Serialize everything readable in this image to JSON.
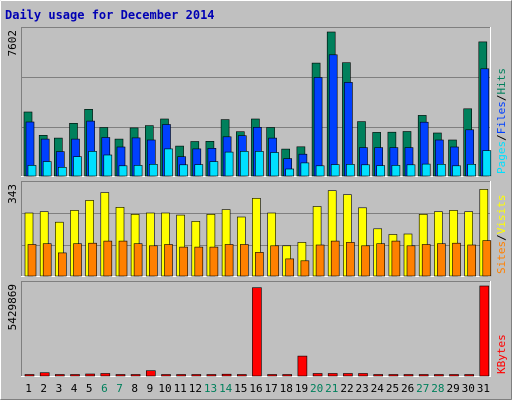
{
  "title": "Daily usage for December 2014",
  "colors": {
    "page_bg": "#c0c0c0",
    "title": "#0000b4",
    "hits": "#00805c",
    "files": "#0040ff",
    "pages": "#00e0ff",
    "visits": "#ffff00",
    "sites": "#ff8000",
    "kbytes": "#ff0000",
    "weekend": "#00805c",
    "grid": "#7f7f7f"
  },
  "chart_data": [
    {
      "type": "bar",
      "panel": "hits-files-pages",
      "ymax_label": "7602",
      "ylim": [
        0,
        7602
      ],
      "legend": [
        "Pages",
        "/",
        "Files",
        "/",
        "Hits"
      ],
      "categories": [
        "1",
        "2",
        "3",
        "4",
        "5",
        "6",
        "7",
        "8",
        "9",
        "10",
        "11",
        "12",
        "13",
        "14",
        "15",
        "16",
        "17",
        "18",
        "19",
        "20",
        "21",
        "22",
        "23",
        "24",
        "25",
        "26",
        "27",
        "28",
        "29",
        "30",
        "31"
      ],
      "series": [
        {
          "name": "Hits",
          "values": [
            3380,
            2150,
            2000,
            2780,
            3520,
            2560,
            1950,
            2540,
            2660,
            3010,
            1580,
            1820,
            1830,
            2980,
            2340,
            3010,
            2560,
            1420,
            1540,
            5960,
            7602,
            5980,
            2870,
            2300,
            2310,
            2350,
            3200,
            2270,
            1900,
            3550,
            7080
          ]
        },
        {
          "name": "Files",
          "values": [
            2850,
            1950,
            1290,
            1950,
            2900,
            2030,
            1530,
            2010,
            1900,
            2720,
            1020,
            1430,
            1460,
            2070,
            2130,
            2570,
            2000,
            920,
            1150,
            5200,
            6400,
            4940,
            1500,
            1500,
            1500,
            1500,
            2840,
            1900,
            1530,
            2440,
            5660
          ]
        },
        {
          "name": "Pages",
          "values": [
            560,
            760,
            460,
            1020,
            1300,
            1110,
            540,
            560,
            620,
            1430,
            590,
            600,
            760,
            1260,
            1300,
            1300,
            1240,
            370,
            690,
            540,
            600,
            610,
            590,
            550,
            560,
            590,
            630,
            620,
            540,
            620,
            1340
          ]
        }
      ]
    },
    {
      "type": "bar",
      "panel": "visits-sites",
      "ymax_label": "343",
      "ylim": [
        0,
        343
      ],
      "legend": [
        "Sites",
        "/",
        "Visits"
      ],
      "categories": [
        "1",
        "2",
        "3",
        "4",
        "5",
        "6",
        "7",
        "8",
        "9",
        "10",
        "11",
        "12",
        "13",
        "14",
        "15",
        "16",
        "17",
        "18",
        "19",
        "20",
        "21",
        "22",
        "23",
        "24",
        "25",
        "26",
        "27",
        "28",
        "29",
        "30",
        "31"
      ],
      "series": [
        {
          "name": "Visits",
          "values": [
            240,
            245,
            205,
            250,
            288,
            318,
            262,
            235,
            240,
            240,
            232,
            208,
            235,
            253,
            225,
            296,
            240,
            115,
            128,
            265,
            325,
            310,
            260,
            180,
            158,
            160,
            235,
            245,
            250,
            245,
            330
          ]
        },
        {
          "name": "Sites",
          "values": [
            120,
            123,
            88,
            123,
            125,
            133,
            133,
            123,
            115,
            120,
            110,
            110,
            110,
            120,
            120,
            90,
            115,
            65,
            58,
            118,
            133,
            128,
            115,
            123,
            133,
            115,
            120,
            123,
            125,
            118,
            135
          ]
        }
      ]
    },
    {
      "type": "bar",
      "panel": "kbytes",
      "ymax_label": "5429869",
      "ylim": [
        0,
        5429869
      ],
      "legend": [
        "KBytes"
      ],
      "categories": [
        "1",
        "2",
        "3",
        "4",
        "5",
        "6",
        "7",
        "8",
        "9",
        "10",
        "11",
        "12",
        "13",
        "14",
        "15",
        "16",
        "17",
        "18",
        "19",
        "20",
        "21",
        "22",
        "23",
        "24",
        "25",
        "26",
        "27",
        "28",
        "29",
        "30",
        "31"
      ],
      "series": [
        {
          "name": "KBytes",
          "values": [
            90000,
            200000,
            90000,
            90000,
            120000,
            150000,
            90000,
            90000,
            320000,
            90000,
            90000,
            90000,
            90000,
            110000,
            90000,
            5330000,
            90000,
            90000,
            1200000,
            150000,
            150000,
            150000,
            150000,
            90000,
            90000,
            90000,
            90000,
            90000,
            90000,
            90000,
            5430000
          ]
        }
      ]
    }
  ],
  "days": [
    "1",
    "2",
    "3",
    "4",
    "5",
    "6",
    "7",
    "8",
    "9",
    "10",
    "11",
    "12",
    "13",
    "14",
    "15",
    "16",
    "17",
    "18",
    "19",
    "20",
    "21",
    "22",
    "23",
    "24",
    "25",
    "26",
    "27",
    "28",
    "29",
    "30",
    "31"
  ],
  "weekend_days": [
    "6",
    "7",
    "13",
    "14",
    "20",
    "21",
    "27",
    "28"
  ]
}
